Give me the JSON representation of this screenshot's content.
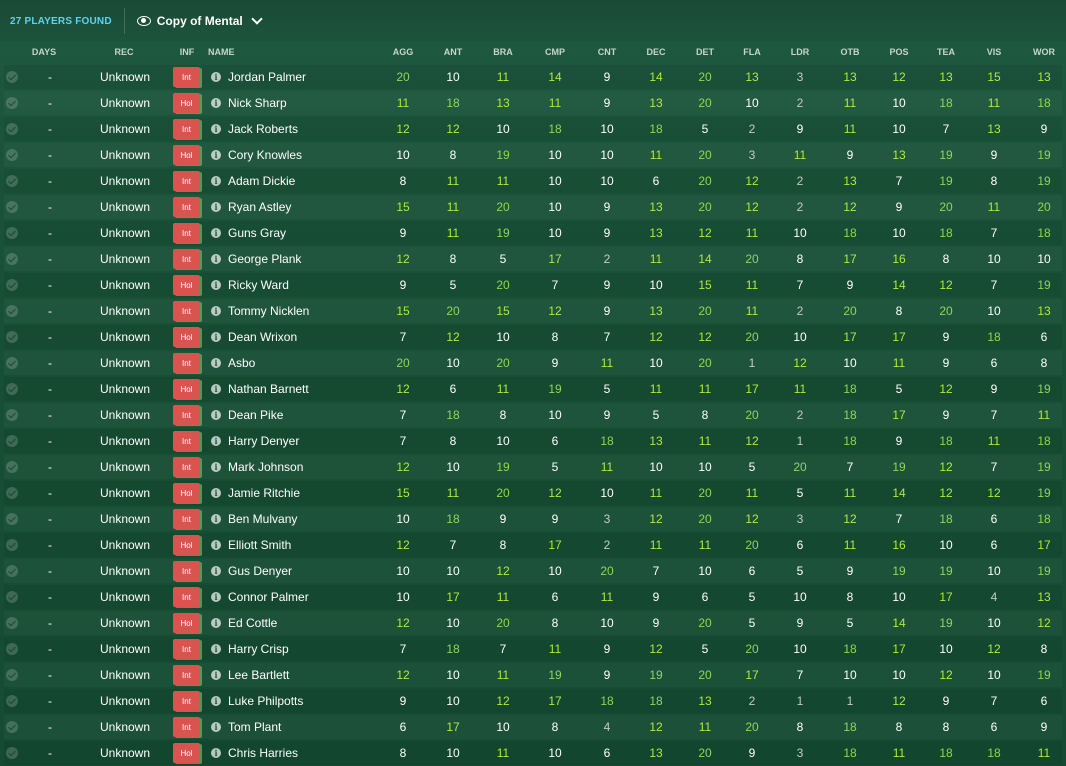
{
  "topbar": {
    "found_label": "27 PLAYERS FOUND",
    "view_label": "Copy of Mental"
  },
  "columns": {
    "days": "DAYS",
    "rec": "REC",
    "inf": "INF",
    "name": "NAME",
    "attrs": [
      "AGG",
      "ANT",
      "BRA",
      "CMP",
      "CNT",
      "DEC",
      "DET",
      "FLA",
      "LDR",
      "OTB",
      "POS",
      "TEA",
      "VIS",
      "WOR"
    ]
  },
  "info_glyph": "i",
  "colors": {
    "attr_high": "#b2ea3c",
    "attr_mid": "#8fd657",
    "attr_norm": "#ffffff",
    "attr_low": "#c3ccc6",
    "badge": "#d9534f",
    "found": "#5fd2ee"
  },
  "players": [
    {
      "days": "-",
      "rec": "Unknown",
      "inf": "Int",
      "name": "Jordan Palmer",
      "attrs": [
        20,
        10,
        11,
        14,
        9,
        14,
        20,
        13,
        3,
        13,
        12,
        13,
        15,
        13
      ]
    },
    {
      "days": "-",
      "rec": "Unknown",
      "inf": "Hol",
      "name": "Nick Sharp",
      "attrs": [
        11,
        18,
        13,
        11,
        9,
        13,
        20,
        10,
        2,
        11,
        10,
        18,
        11,
        18
      ]
    },
    {
      "days": "-",
      "rec": "Unknown",
      "inf": "Int",
      "name": "Jack Roberts",
      "attrs": [
        12,
        12,
        10,
        18,
        10,
        18,
        5,
        2,
        9,
        11,
        10,
        7,
        13,
        9
      ]
    },
    {
      "days": "-",
      "rec": "Unknown",
      "inf": "Hol",
      "name": "Cory Knowles",
      "attrs": [
        10,
        8,
        19,
        10,
        10,
        11,
        20,
        3,
        11,
        9,
        13,
        19,
        9,
        19
      ]
    },
    {
      "days": "-",
      "rec": "Unknown",
      "inf": "Int",
      "name": "Adam Dickie",
      "attrs": [
        8,
        11,
        11,
        10,
        10,
        6,
        20,
        12,
        2,
        13,
        7,
        19,
        8,
        19
      ]
    },
    {
      "days": "-",
      "rec": "Unknown",
      "inf": "Int",
      "name": "Ryan Astley",
      "attrs": [
        15,
        11,
        20,
        10,
        9,
        13,
        20,
        12,
        2,
        12,
        9,
        20,
        11,
        20
      ]
    },
    {
      "days": "-",
      "rec": "Unknown",
      "inf": "Int",
      "name": "Guns Gray",
      "attrs": [
        9,
        11,
        19,
        10,
        9,
        13,
        12,
        11,
        10,
        18,
        10,
        18,
        7,
        18
      ]
    },
    {
      "days": "-",
      "rec": "Unknown",
      "inf": "Int",
      "name": "George Plank",
      "attrs": [
        12,
        8,
        5,
        17,
        2,
        11,
        14,
        20,
        8,
        17,
        16,
        8,
        10,
        10
      ]
    },
    {
      "days": "-",
      "rec": "Unknown",
      "inf": "Hol",
      "name": "Ricky Ward",
      "attrs": [
        9,
        5,
        20,
        7,
        9,
        10,
        15,
        11,
        7,
        9,
        14,
        12,
        7,
        19
      ]
    },
    {
      "days": "-",
      "rec": "Unknown",
      "inf": "Int",
      "name": "Tommy Nicklen",
      "attrs": [
        15,
        20,
        15,
        12,
        9,
        13,
        20,
        11,
        2,
        20,
        8,
        20,
        10,
        13
      ]
    },
    {
      "days": "-",
      "rec": "Unknown",
      "inf": "Hol",
      "name": "Dean Wrixon",
      "attrs": [
        7,
        12,
        10,
        8,
        7,
        12,
        12,
        20,
        10,
        17,
        17,
        9,
        18,
        6
      ]
    },
    {
      "days": "-",
      "rec": "Unknown",
      "inf": "Int",
      "name": "Asbo",
      "attrs": [
        20,
        10,
        20,
        9,
        11,
        10,
        20,
        1,
        12,
        10,
        11,
        9,
        6,
        8
      ]
    },
    {
      "days": "-",
      "rec": "Unknown",
      "inf": "Hol",
      "name": "Nathan Barnett",
      "attrs": [
        12,
        6,
        11,
        19,
        5,
        11,
        11,
        17,
        11,
        18,
        5,
        12,
        9,
        19
      ]
    },
    {
      "days": "-",
      "rec": "Unknown",
      "inf": "Int",
      "name": "Dean Pike",
      "attrs": [
        7,
        18,
        8,
        10,
        9,
        5,
        8,
        20,
        2,
        18,
        17,
        9,
        7,
        11
      ]
    },
    {
      "days": "-",
      "rec": "Unknown",
      "inf": "Int",
      "name": "Harry Denyer",
      "attrs": [
        7,
        8,
        10,
        6,
        18,
        13,
        11,
        12,
        1,
        18,
        9,
        18,
        11,
        18
      ]
    },
    {
      "days": "-",
      "rec": "Unknown",
      "inf": "Int",
      "name": "Mark Johnson",
      "attrs": [
        12,
        10,
        19,
        5,
        11,
        10,
        10,
        5,
        20,
        7,
        19,
        12,
        7,
        19
      ]
    },
    {
      "days": "-",
      "rec": "Unknown",
      "inf": "Hol",
      "name": "Jamie Ritchie",
      "attrs": [
        15,
        11,
        20,
        12,
        10,
        11,
        20,
        11,
        5,
        11,
        14,
        12,
        12,
        19
      ]
    },
    {
      "days": "-",
      "rec": "Unknown",
      "inf": "Int",
      "name": "Ben Mulvany",
      "attrs": [
        10,
        18,
        9,
        9,
        3,
        12,
        20,
        12,
        3,
        12,
        7,
        18,
        6,
        18
      ]
    },
    {
      "days": "-",
      "rec": "Unknown",
      "inf": "Hol",
      "name": "Elliott Smith",
      "attrs": [
        12,
        7,
        8,
        17,
        2,
        11,
        11,
        20,
        6,
        11,
        16,
        10,
        6,
        17
      ]
    },
    {
      "days": "-",
      "rec": "Unknown",
      "inf": "Int",
      "name": "Gus Denyer",
      "attrs": [
        10,
        10,
        12,
        10,
        20,
        7,
        10,
        6,
        5,
        9,
        19,
        19,
        10,
        19
      ]
    },
    {
      "days": "-",
      "rec": "Unknown",
      "inf": "Int",
      "name": "Connor Palmer",
      "attrs": [
        10,
        17,
        11,
        6,
        11,
        9,
        6,
        5,
        10,
        8,
        10,
        17,
        4,
        13
      ]
    },
    {
      "days": "-",
      "rec": "Unknown",
      "inf": "Hol",
      "name": "Ed Cottle",
      "attrs": [
        12,
        10,
        20,
        8,
        10,
        9,
        20,
        5,
        9,
        5,
        14,
        19,
        10,
        12
      ]
    },
    {
      "days": "-",
      "rec": "Unknown",
      "inf": "Int",
      "name": "Harry Crisp",
      "attrs": [
        7,
        18,
        7,
        11,
        9,
        12,
        5,
        20,
        10,
        18,
        17,
        10,
        12,
        8
      ]
    },
    {
      "days": "-",
      "rec": "Unknown",
      "inf": "Int",
      "name": "Lee Bartlett",
      "attrs": [
        12,
        10,
        11,
        19,
        9,
        19,
        20,
        17,
        7,
        10,
        10,
        12,
        10,
        19
      ]
    },
    {
      "days": "-",
      "rec": "Unknown",
      "inf": "Int",
      "name": "Luke Philpotts",
      "attrs": [
        9,
        10,
        12,
        17,
        18,
        18,
        13,
        2,
        1,
        1,
        12,
        9,
        7,
        6
      ]
    },
    {
      "days": "-",
      "rec": "Unknown",
      "inf": "Int",
      "name": "Tom Plant",
      "attrs": [
        6,
        17,
        10,
        8,
        4,
        12,
        11,
        20,
        8,
        18,
        8,
        8,
        6,
        9
      ]
    },
    {
      "days": "-",
      "rec": "Unknown",
      "inf": "Hol",
      "name": "Chris Harries",
      "attrs": [
        8,
        10,
        11,
        10,
        6,
        13,
        20,
        9,
        3,
        18,
        11,
        18,
        18,
        11
      ]
    }
  ]
}
